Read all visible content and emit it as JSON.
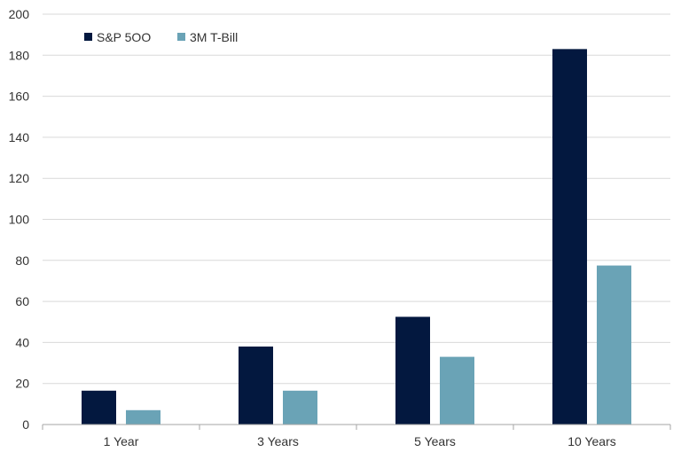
{
  "chart_data": {
    "type": "bar",
    "categories": [
      "1 Year",
      "3 Years",
      "5 Years",
      "10 Years"
    ],
    "series": [
      {
        "name": "S&P 5OO",
        "color": "#03183f",
        "values": [
          16.5,
          38,
          52.5,
          183
        ]
      },
      {
        "name": "3M T-Bill",
        "color": "#6aa3b6",
        "values": [
          7,
          16.5,
          33,
          77.5
        ]
      }
    ],
    "yticks": [
      "0",
      "20",
      "40",
      "60",
      "80",
      "100",
      "120",
      "140",
      "160",
      "180",
      "200"
    ],
    "ylim": [
      0,
      200
    ],
    "grid": true,
    "legend_position": "top-left",
    "title": "",
    "xlabel": "",
    "ylabel": ""
  }
}
